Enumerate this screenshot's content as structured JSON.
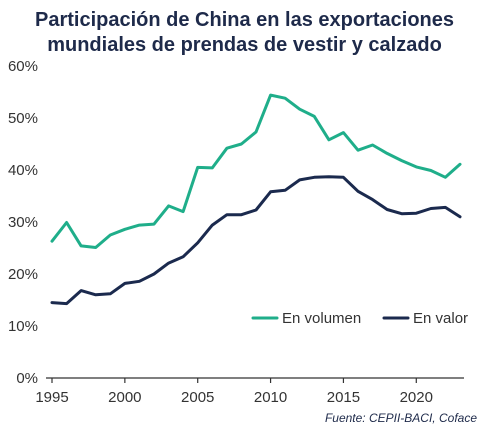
{
  "chart_data": {
    "type": "line",
    "title": "Participación de China en las exportaciones mundiales de prendas de vestir y calzado",
    "title_lines": [
      "Participación de China en las exportaciones",
      "mundiales de prendas de vestir y calzado"
    ],
    "x": [
      1995,
      1996,
      1997,
      1998,
      1999,
      2000,
      2001,
      2002,
      2003,
      2004,
      2005,
      2006,
      2007,
      2008,
      2009,
      2010,
      2011,
      2012,
      2013,
      2014,
      2015,
      2016,
      2017,
      2018,
      2019,
      2020,
      2021,
      2022,
      2023
    ],
    "series": [
      {
        "name": "En volumen",
        "color": "#1fae8a",
        "values": [
          26.3,
          29.9,
          25.4,
          25.1,
          27.5,
          28.6,
          29.4,
          29.6,
          33.1,
          32.0,
          40.5,
          40.4,
          44.2,
          45.0,
          47.3,
          54.4,
          53.8,
          51.7,
          50.3,
          45.8,
          47.2,
          43.8,
          44.8,
          43.2,
          41.8,
          40.6,
          39.9,
          38.6,
          41.1
        ]
      },
      {
        "name": "En valor",
        "color": "#1b2a4e",
        "values": [
          14.5,
          14.3,
          16.8,
          16.0,
          16.2,
          18.2,
          18.6,
          20.0,
          22.1,
          23.3,
          26.0,
          29.4,
          31.4,
          31.4,
          32.3,
          35.8,
          36.1,
          38.1,
          38.6,
          38.7,
          38.6,
          35.9,
          34.3,
          32.4,
          31.6,
          31.7,
          32.6,
          32.8,
          31.0
        ]
      }
    ],
    "xlim": [
      1995,
      2023
    ],
    "ylim": [
      0,
      60
    ],
    "xticks": [
      1995,
      2000,
      2005,
      2010,
      2015,
      2020
    ],
    "xtick_labels": [
      "1995",
      "2000",
      "2005",
      "2010",
      "2015",
      "2020"
    ],
    "yticks": [
      0,
      10,
      20,
      30,
      40,
      50,
      60
    ],
    "ytick_labels": [
      "0%",
      "10%",
      "20%",
      "30%",
      "40%",
      "50%",
      "60%"
    ],
    "xlabel": "",
    "ylabel": "",
    "grid": false,
    "legend_placement": "bottom-right",
    "axis_color": "#333333"
  },
  "source": "Fuente:  CEPII-BACI, Coface"
}
